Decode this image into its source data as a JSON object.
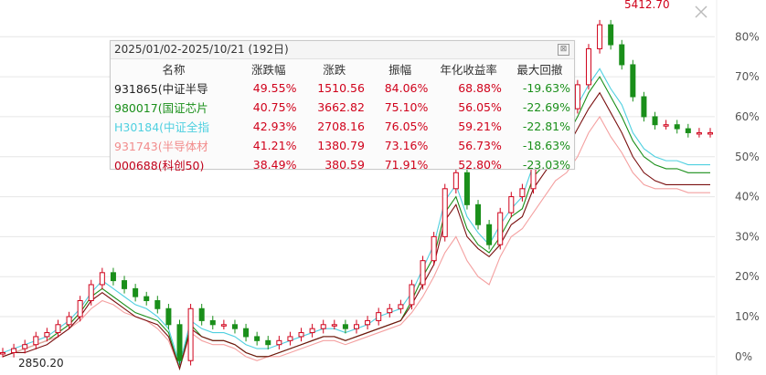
{
  "panel": {
    "title": "2025/01/02-2025/10/21 (192日)",
    "close_glyph": "⊠",
    "headers": [
      "名称",
      "涨跌幅",
      "涨跌",
      "振幅",
      "年化收益率",
      "最大回撤"
    ]
  },
  "rows": [
    {
      "name": "931865(中证半导",
      "name_color": "#222222",
      "pct": "49.55%",
      "chg": "1510.56",
      "amp": "84.06%",
      "annual": "68.88%",
      "drawdown": "-19.63%"
    },
    {
      "name": "980017(国证芯片",
      "name_color": "#1a8f1a",
      "pct": "40.75%",
      "chg": "3662.82",
      "amp": "75.10%",
      "annual": "56.05%",
      "drawdown": "-22.69%"
    },
    {
      "name": "H30184(中证全指",
      "name_color": "#4fd0e0",
      "pct": "42.93%",
      "chg": "2708.16",
      "amp": "76.05%",
      "annual": "59.21%",
      "drawdown": "-22.81%"
    },
    {
      "name": "931743(半导体材",
      "name_color": "#f28c8c",
      "pct": "41.21%",
      "chg": "1380.79",
      "amp": "73.16%",
      "annual": "56.73%",
      "drawdown": "-18.63%"
    },
    {
      "name": "000688(科创50)",
      "name_color": "#c0001a",
      "pct": "38.49%",
      "chg": "380.59",
      "amp": "71.91%",
      "annual": "52.80%",
      "drawdown": "-23.03%"
    }
  ],
  "chart_data": {
    "type": "line",
    "y_axis": {
      "ticks": [
        "80%",
        "70%",
        "60%",
        "50%",
        "40%",
        "30%",
        "20%",
        "10%",
        "0%"
      ],
      "range": [
        -3,
        86
      ],
      "unit": "%"
    },
    "annotations": {
      "peak_label": "5412.70",
      "low_label": "2850.20"
    },
    "x": [
      0,
      3,
      6,
      9,
      12,
      15,
      18,
      21,
      24,
      27,
      30,
      33,
      36,
      39,
      42,
      45,
      48,
      51,
      54,
      57,
      60,
      63,
      66,
      69,
      72,
      75,
      78,
      81,
      84,
      87,
      90,
      93,
      96,
      99,
      102,
      105,
      108,
      111,
      114,
      117,
      120,
      123,
      126,
      129,
      132,
      135,
      138,
      141,
      144,
      147,
      150,
      153,
      156,
      159,
      162,
      165,
      168,
      171,
      174,
      177,
      180,
      183,
      186,
      189,
      192
    ],
    "series": [
      {
        "name": "931865(中证半导",
        "color": "#d0021b",
        "kind": "candle",
        "values": [
          1,
          2,
          3,
          5,
          6,
          8,
          10,
          14,
          18,
          21,
          19,
          17,
          15,
          14,
          12,
          8,
          -1,
          12,
          9,
          8,
          8,
          7,
          5,
          4,
          3,
          4,
          5,
          6,
          7,
          8,
          8,
          7,
          8,
          9,
          11,
          12,
          13,
          18,
          24,
          30,
          42,
          46,
          38,
          33,
          28,
          36,
          40,
          42,
          52,
          56,
          60,
          62,
          68,
          77,
          83,
          78,
          73,
          65,
          60,
          58,
          58,
          57,
          56,
          56,
          56
        ]
      },
      {
        "name": "980017(国证芯片",
        "color": "#1a8f1a",
        "kind": "line",
        "values": [
          0,
          1,
          2,
          3,
          4,
          6,
          8,
          11,
          15,
          17,
          15,
          13,
          11,
          10,
          9,
          6,
          -3,
          8,
          5,
          4,
          4,
          3,
          1,
          0,
          0,
          1,
          2,
          3,
          4,
          5,
          5,
          4,
          5,
          6,
          7,
          8,
          9,
          14,
          20,
          25,
          36,
          40,
          32,
          28,
          26,
          30,
          35,
          37,
          45,
          48,
          52,
          55,
          60,
          66,
          70,
          65,
          60,
          54,
          50,
          48,
          47,
          47,
          46,
          46,
          46
        ]
      },
      {
        "name": "H30184(中证全指",
        "color": "#4fd0e0",
        "kind": "line",
        "values": [
          1,
          2,
          3,
          4,
          5,
          7,
          9,
          12,
          16,
          19,
          17,
          15,
          13,
          12,
          10,
          7,
          -2,
          9,
          7,
          6,
          6,
          5,
          3,
          2,
          2,
          3,
          4,
          5,
          6,
          7,
          7,
          6,
          7,
          8,
          10,
          11,
          12,
          16,
          22,
          28,
          39,
          43,
          35,
          31,
          28,
          33,
          37,
          40,
          48,
          52,
          56,
          58,
          63,
          68,
          72,
          67,
          63,
          56,
          52,
          50,
          49,
          49,
          48,
          48,
          48
        ]
      },
      {
        "name": "931743(半导体材",
        "color": "#f4a0a0",
        "kind": "line",
        "values": [
          0,
          1,
          2,
          3,
          4,
          5,
          7,
          9,
          12,
          14,
          13,
          11,
          10,
          9,
          7,
          4,
          -3,
          6,
          4,
          3,
          3,
          2,
          0,
          -1,
          0,
          0,
          1,
          2,
          3,
          4,
          4,
          3,
          4,
          5,
          6,
          7,
          8,
          11,
          15,
          20,
          26,
          30,
          24,
          20,
          18,
          25,
          30,
          32,
          36,
          40,
          44,
          46,
          50,
          56,
          60,
          55,
          51,
          46,
          43,
          42,
          42,
          42,
          41,
          41,
          41
        ]
      },
      {
        "name": "000688(科创50)",
        "color": "#7a1010",
        "kind": "line",
        "values": [
          0,
          1,
          1,
          2,
          3,
          5,
          7,
          10,
          14,
          16,
          14,
          12,
          10,
          9,
          8,
          5,
          -3,
          7,
          5,
          4,
          4,
          3,
          1,
          0,
          0,
          1,
          2,
          3,
          4,
          5,
          5,
          4,
          5,
          6,
          7,
          8,
          9,
          13,
          18,
          23,
          34,
          38,
          30,
          27,
          25,
          28,
          33,
          35,
          42,
          46,
          50,
          52,
          57,
          62,
          66,
          61,
          56,
          50,
          46,
          44,
          43,
          43,
          43,
          43,
          43
        ]
      }
    ]
  }
}
